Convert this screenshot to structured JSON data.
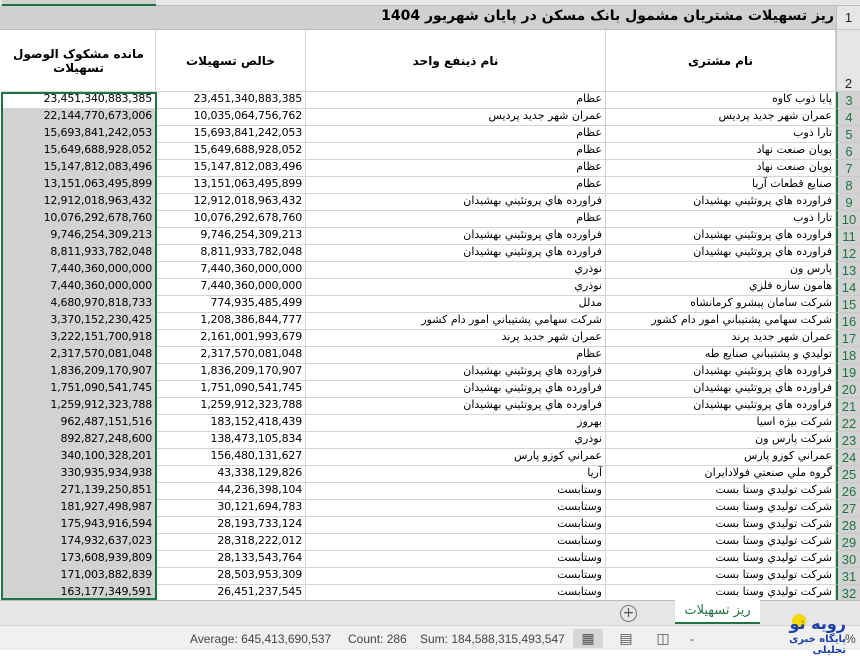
{
  "title": "ریز تسهیلات مشتریان مشمول بانک مسکن در پایان شهریور 1404",
  "headers": {
    "customer": "نام مشتری",
    "beneficiary": "نام ذینفع واحد",
    "net": "خالص تسهیلات",
    "doubtful": "مانده مشکوک الوصول تسهیلات"
  },
  "rows": [
    {
      "n": "3",
      "customer": "پایا ذوب کاوه",
      "beneficiary": "عظام",
      "net": "23,451,340,883,385",
      "doubtful": "23,451,340,883,385"
    },
    {
      "n": "4",
      "customer": "عمران شهر جدید پردیس",
      "beneficiary": "عمران شهر جدید پردیس",
      "net": "10,035,064,756,762",
      "doubtful": "22,144,770,673,006"
    },
    {
      "n": "5",
      "customer": "تارا ذوب",
      "beneficiary": "عظام",
      "net": "15,693,841,242,053",
      "doubtful": "15,693,841,242,053"
    },
    {
      "n": "6",
      "customer": "پویان صنعت نهاد",
      "beneficiary": "عظام",
      "net": "15,649,688,928,052",
      "doubtful": "15,649,688,928,052"
    },
    {
      "n": "7",
      "customer": "پویان صنعت نهاد",
      "beneficiary": "عظام",
      "net": "15,147,812,083,496",
      "doubtful": "15,147,812,083,496"
    },
    {
      "n": "8",
      "customer": "صنایع قطعات آریا",
      "beneficiary": "عظام",
      "net": "13,151,063,495,899",
      "doubtful": "13,151,063,495,899"
    },
    {
      "n": "9",
      "customer": "فراورده هاي پروتئيني بهشيدان",
      "beneficiary": "فراورده هاي پروتئيني بهشيدان",
      "net": "12,912,018,963,432",
      "doubtful": "12,912,018,963,432"
    },
    {
      "n": "10",
      "customer": "تارا ذوب",
      "beneficiary": "عظام",
      "net": "10,076,292,678,760",
      "doubtful": "10,076,292,678,760"
    },
    {
      "n": "11",
      "customer": "فراورده هاي پروتئيني بهشيدان",
      "beneficiary": "فراورده هاي پروتئيني بهشيدان",
      "net": "9,746,254,309,213",
      "doubtful": "9,746,254,309,213"
    },
    {
      "n": "12",
      "customer": "فراورده هاي پروتئيني بهشيدان",
      "beneficiary": "فراورده هاي پروتئيني بهشيدان",
      "net": "8,811,933,782,048",
      "doubtful": "8,811,933,782,048"
    },
    {
      "n": "13",
      "customer": "پارس ون",
      "beneficiary": "نوذري",
      "net": "7,440,360,000,000",
      "doubtful": "7,440,360,000,000"
    },
    {
      "n": "14",
      "customer": "هامون سازه فلزي",
      "beneficiary": "نوذري",
      "net": "7,440,360,000,000",
      "doubtful": "7,440,360,000,000"
    },
    {
      "n": "15",
      "customer": "شركت سامان پيشرو كرمانشاه",
      "beneficiary": "مدلل",
      "net": "774,935,485,499",
      "doubtful": "4,680,970,818,733"
    },
    {
      "n": "16",
      "customer": "شركت سهامي پشتيباني امور دام كشور",
      "beneficiary": "شركت سهامي پشتيباني امور دام كشور",
      "net": "1,208,386,844,777",
      "doubtful": "3,370,152,230,425"
    },
    {
      "n": "17",
      "customer": "عمران شهر جديد پرند",
      "beneficiary": "عمران شهر جديد پرند",
      "net": "2,161,001,993,679",
      "doubtful": "3,222,151,700,918"
    },
    {
      "n": "18",
      "customer": "توليدي و پشتيباني صنايع طه",
      "beneficiary": "عظام",
      "net": "2,317,570,081,048",
      "doubtful": "2,317,570,081,048"
    },
    {
      "n": "19",
      "customer": "فراورده هاي پروتئيني بهشيدان",
      "beneficiary": "فراورده هاي پروتئيني بهشيدان",
      "net": "1,836,209,170,907",
      "doubtful": "1,836,209,170,907"
    },
    {
      "n": "20",
      "customer": "فراورده هاي پروتئيني بهشيدان",
      "beneficiary": "فراورده هاي پروتئيني بهشيدان",
      "net": "1,751,090,541,745",
      "doubtful": "1,751,090,541,745"
    },
    {
      "n": "21",
      "customer": "فراورده هاي پروتئيني بهشيدان",
      "beneficiary": "فراورده هاي پروتئيني بهشيدان",
      "net": "1,259,912,323,788",
      "doubtful": "1,259,912,323,788"
    },
    {
      "n": "22",
      "customer": "شركت بيژه اسيا",
      "beneficiary": "بهروز",
      "net": "183,152,418,439",
      "doubtful": "962,487,151,516"
    },
    {
      "n": "23",
      "customer": "شركت پارس ون",
      "beneficiary": "نوذري",
      "net": "138,473,105,834",
      "doubtful": "892,827,248,600"
    },
    {
      "n": "24",
      "customer": "عمراني كوزو پارس",
      "beneficiary": "عمراني كوزو پارس",
      "net": "156,480,131,627",
      "doubtful": "340,100,328,201"
    },
    {
      "n": "25",
      "customer": "گروه ملي صنعتي فولادايران",
      "beneficiary": "آريا",
      "net": "43,338,129,826",
      "doubtful": "330,935,934,938"
    },
    {
      "n": "26",
      "customer": "شركت توليدي وستا بست",
      "beneficiary": "وستابست",
      "net": "44,236,398,104",
      "doubtful": "271,139,250,851"
    },
    {
      "n": "27",
      "customer": "شركت توليدي وستا بست",
      "beneficiary": "وستابست",
      "net": "30,121,694,783",
      "doubtful": "181,927,498,987"
    },
    {
      "n": "28",
      "customer": "شركت توليدي وستا بست",
      "beneficiary": "وستابست",
      "net": "28,193,733,124",
      "doubtful": "175,943,916,594"
    },
    {
      "n": "29",
      "customer": "شركت توليدي وستا بست",
      "beneficiary": "وستابست",
      "net": "28,318,222,012",
      "doubtful": "174,932,637,023"
    },
    {
      "n": "30",
      "customer": "شركت توليدي وستا بست",
      "beneficiary": "وستابست",
      "net": "28,133,543,764",
      "doubtful": "173,608,939,809"
    },
    {
      "n": "31",
      "customer": "شركت توليدي وستا بست",
      "beneficiary": "وستابست",
      "net": "28,503,953,309",
      "doubtful": "171,003,882,839"
    },
    {
      "n": "32",
      "customer": "شركت توليدي وستا بست",
      "beneficiary": "وستابست",
      "net": "26,451,237,545",
      "doubtful": "163,177,349,591"
    }
  ],
  "row_numbers": {
    "title": "1",
    "header": "2"
  },
  "sheet_tab": "ریز تسهیلات",
  "add_sheet_icon": "plus-circle-icon",
  "status": {
    "average": "Average: 645,413,690,537",
    "count": "Count: 286",
    "sum": "Sum: 184,588,315,493,547",
    "zoom_suffix": "%"
  },
  "view_icons": [
    "normal-view-icon",
    "page-layout-icon",
    "page-break-preview-icon"
  ],
  "watermark": {
    "logo": "رویه نو",
    "tagline": "پایگاه خبری تحلیلی"
  },
  "colors": {
    "accent": "#217346",
    "selection": "#d2d2d2",
    "title_bg": "#d0d0d0"
  }
}
